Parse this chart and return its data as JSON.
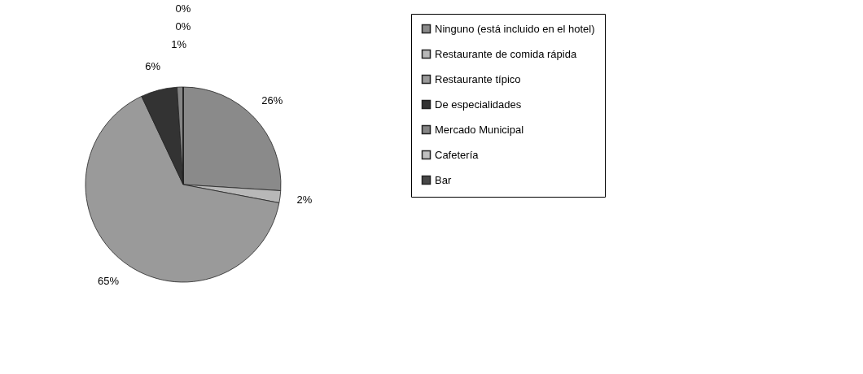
{
  "chart_data": {
    "type": "pie",
    "categories": [
      "Ninguno (está incluido en el hotel)",
      "Restaurante de comida rápida",
      "Restaurante típico",
      "De especialidades",
      "Mercado Municipal",
      "Cafetería",
      "Bar"
    ],
    "values": [
      26,
      2,
      65,
      6,
      1,
      0,
      0
    ],
    "colors": [
      "#8a8a8a",
      "#b8b8b8",
      "#9a9a9a",
      "#333333",
      "#858585",
      "#c0c0c0",
      "#474747"
    ],
    "value_labels": [
      "26%",
      "2%",
      "65%",
      "6%",
      "1%",
      "0%",
      "0%"
    ],
    "legend": "right"
  }
}
